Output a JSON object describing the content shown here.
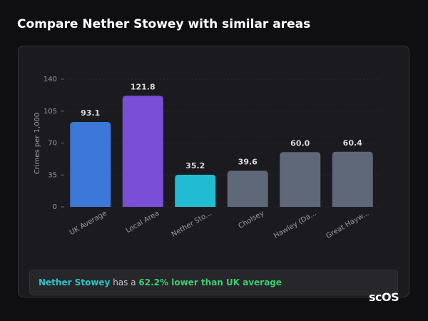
{
  "title": "Compare Nether Stowey with similar areas",
  "chart_data": {
    "type": "bar",
    "y_label": "Crimes per 1,000",
    "categories": [
      "UK Average",
      "Local Area",
      "Nether Sto...",
      "Cholsey",
      "Hawley (Da...",
      "Great Hayw..."
    ],
    "values": [
      93.1,
      121.8,
      35.2,
      39.6,
      60.0,
      60.4
    ],
    "value_labels": [
      "93.1",
      "121.8",
      "35.2",
      "39.6",
      "60.0",
      "60.4"
    ],
    "colors": [
      "#3b78d8",
      "#7a4ed6",
      "#22bcd2",
      "#5f6878",
      "#5f6878",
      "#5f6878"
    ],
    "ylim": [
      0,
      140
    ],
    "yticks": [
      0,
      35,
      70,
      105,
      140
    ],
    "grid": true
  },
  "summary": {
    "place": "Nether Stowey",
    "connector": "has a",
    "comparison": "62.2% lower than UK average"
  },
  "logo": "scOS"
}
